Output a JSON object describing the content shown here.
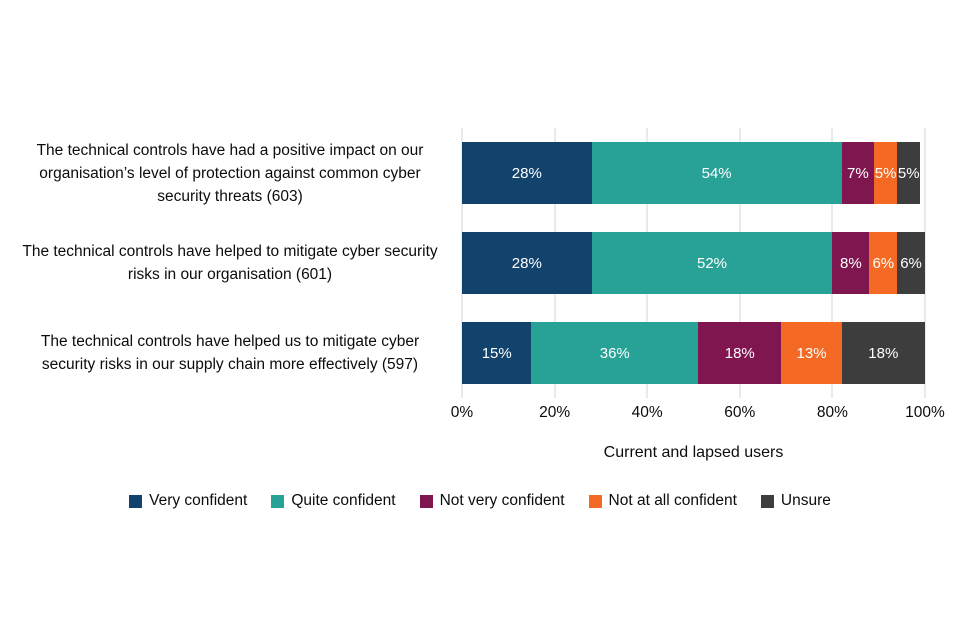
{
  "chart_data": {
    "type": "bar",
    "stacked": true,
    "orientation": "horizontal",
    "title": "",
    "xlabel": "Current and lapsed users",
    "ylabel": "",
    "xlim": [
      0,
      100
    ],
    "grid": true,
    "legend_position": "bottom",
    "x_ticks": [
      "0%",
      "20%",
      "40%",
      "60%",
      "80%",
      "100%"
    ],
    "categories": [
      "The technical controls have had a positive impact on our organisation’s level of protection against common cyber security threats (603)",
      "The technical controls have helped to mitigate cyber security risks in our organisation (601)",
      "The technical controls have helped us to mitigate cyber security risks in our supply chain more effectively (597)"
    ],
    "series": [
      {
        "name": "Very confident",
        "color": "#12436D",
        "values": [
          28,
          28,
          15
        ]
      },
      {
        "name": "Quite confident",
        "color": "#28A197",
        "values": [
          54,
          52,
          36
        ]
      },
      {
        "name": "Not very confident",
        "color": "#801650",
        "values": [
          7,
          8,
          18
        ]
      },
      {
        "name": "Not at all confident",
        "color": "#F46A25",
        "values": [
          5,
          6,
          13
        ]
      },
      {
        "name": "Unsure",
        "color": "#3D3D3D",
        "values": [
          5,
          6,
          18
        ]
      }
    ],
    "data_label_suffix": "%"
  }
}
